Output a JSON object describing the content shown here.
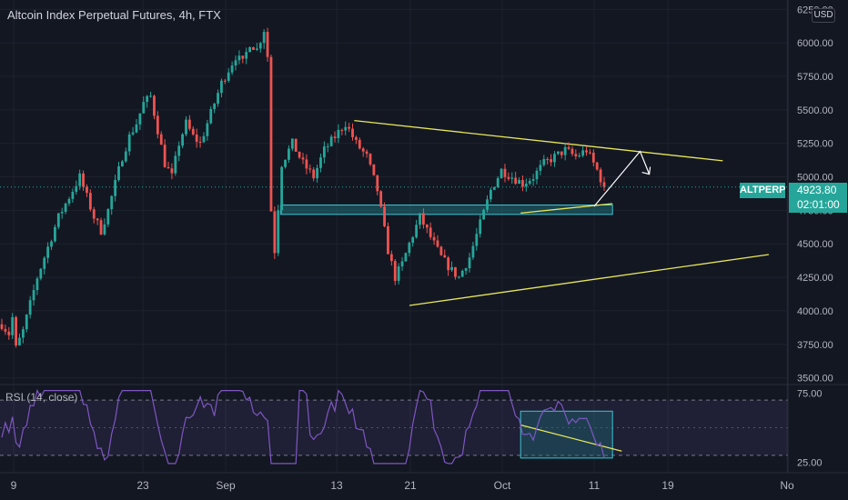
{
  "header": {
    "title": "Altcoin Index Perpetual Futures, 4h, FTX"
  },
  "currency_button": "USD",
  "price_tag": {
    "symbol": "ALTPERP",
    "price": "4923.80",
    "countdown": "02:01:00"
  },
  "rsi": {
    "label": "RSI (14, close)",
    "ticks": [
      "75.00",
      "25.00"
    ],
    "upper_band": 70,
    "lower_band": 30,
    "range": [
      20,
      80
    ]
  },
  "colors": {
    "background": "#131722",
    "up": "#26a69a",
    "down": "#ef5350",
    "trendline": "#e6e65a",
    "zone_fill": "#1e6f78",
    "zone_stroke": "#3fc4d4",
    "rsi_line": "#7e57c2",
    "projection": "#ffffff"
  },
  "chart_data": {
    "type": "candlestick",
    "title": "Altcoin Index Perpetual Futures, 4h, FTX",
    "y_ticks": [
      "6250.00",
      "6000.00",
      "5750.00",
      "5500.00",
      "5250.00",
      "5000.00",
      "4750.00",
      "4500.00",
      "4250.00",
      "4000.00",
      "3750.00",
      "3500.00"
    ],
    "x_ticks": [
      "9",
      "23",
      "Sep",
      "13",
      "21",
      "Oct",
      "11",
      "19",
      "No"
    ],
    "ylim": [
      3450,
      6320
    ],
    "last_price": 4923.8,
    "price_path": [
      [
        0,
        3900
      ],
      [
        2,
        3830
      ],
      [
        3,
        3950
      ],
      [
        4,
        3720
      ],
      [
        6,
        3850
      ],
      [
        8,
        4050
      ],
      [
        10,
        4250
      ],
      [
        12,
        4400
      ],
      [
        14,
        4550
      ],
      [
        16,
        4700
      ],
      [
        18,
        4800
      ],
      [
        20,
        4900
      ],
      [
        22,
        5000
      ],
      [
        24,
        4850
      ],
      [
        26,
        4700
      ],
      [
        28,
        4600
      ],
      [
        30,
        4750
      ],
      [
        32,
        4950
      ],
      [
        34,
        5150
      ],
      [
        36,
        5300
      ],
      [
        38,
        5400
      ],
      [
        40,
        5550
      ],
      [
        42,
        5600
      ],
      [
        44,
        5350
      ],
      [
        46,
        5100
      ],
      [
        48,
        5000
      ],
      [
        50,
        5250
      ],
      [
        52,
        5400
      ],
      [
        54,
        5300
      ],
      [
        56,
        5250
      ],
      [
        58,
        5400
      ],
      [
        60,
        5550
      ],
      [
        62,
        5700
      ],
      [
        64,
        5800
      ],
      [
        66,
        5900
      ],
      [
        68,
        5850
      ],
      [
        70,
        6000
      ],
      [
        72,
        5950
      ],
      [
        74,
        6100
      ],
      [
        75,
        5900
      ],
      [
        76,
        4750
      ],
      [
        77,
        4450
      ],
      [
        79,
        5100
      ],
      [
        82,
        5250
      ],
      [
        85,
        5100
      ],
      [
        88,
        5000
      ],
      [
        91,
        5200
      ],
      [
        94,
        5300
      ],
      [
        97,
        5400
      ],
      [
        100,
        5250
      ],
      [
        103,
        5150
      ],
      [
        106,
        4900
      ],
      [
        109,
        4450
      ],
      [
        111,
        4250
      ],
      [
        113,
        4350
      ],
      [
        115,
        4500
      ],
      [
        118,
        4700
      ],
      [
        121,
        4550
      ],
      [
        124,
        4400
      ],
      [
        127,
        4300
      ],
      [
        129,
        4250
      ],
      [
        132,
        4400
      ],
      [
        135,
        4650
      ],
      [
        138,
        4900
      ],
      [
        141,
        5050
      ],
      [
        144,
        5000
      ],
      [
        147,
        4950
      ],
      [
        150,
        5000
      ],
      [
        153,
        5100
      ],
      [
        156,
        5150
      ],
      [
        159,
        5200
      ],
      [
        162,
        5150
      ],
      [
        165,
        5200
      ],
      [
        168,
        5050
      ],
      [
        170,
        4923.8
      ]
    ],
    "candles_count": 170,
    "trendlines": [
      {
        "from": [
          "Sep 15",
          5420
        ],
        "to": [
          "Oct 25",
          5120
        ]
      },
      {
        "from": [
          "Sep 21",
          4040
        ],
        "to": [
          "Oct 30",
          4420
        ]
      },
      {
        "from": [
          "Oct 3",
          4730
        ],
        "to": [
          "Oct 13",
          4800
        ]
      }
    ],
    "support_zone": {
      "from": "Sep 7",
      "to": "Oct 13",
      "low": 4720,
      "high": 4790
    },
    "projection": [
      [
        "Oct 11",
        4780
      ],
      [
        "Oct 16",
        5190
      ],
      [
        "Oct 17",
        5020
      ]
    ],
    "rsi_box": {
      "from": "Oct 3",
      "to": "Oct 13",
      "low": 28,
      "high": 62
    }
  }
}
